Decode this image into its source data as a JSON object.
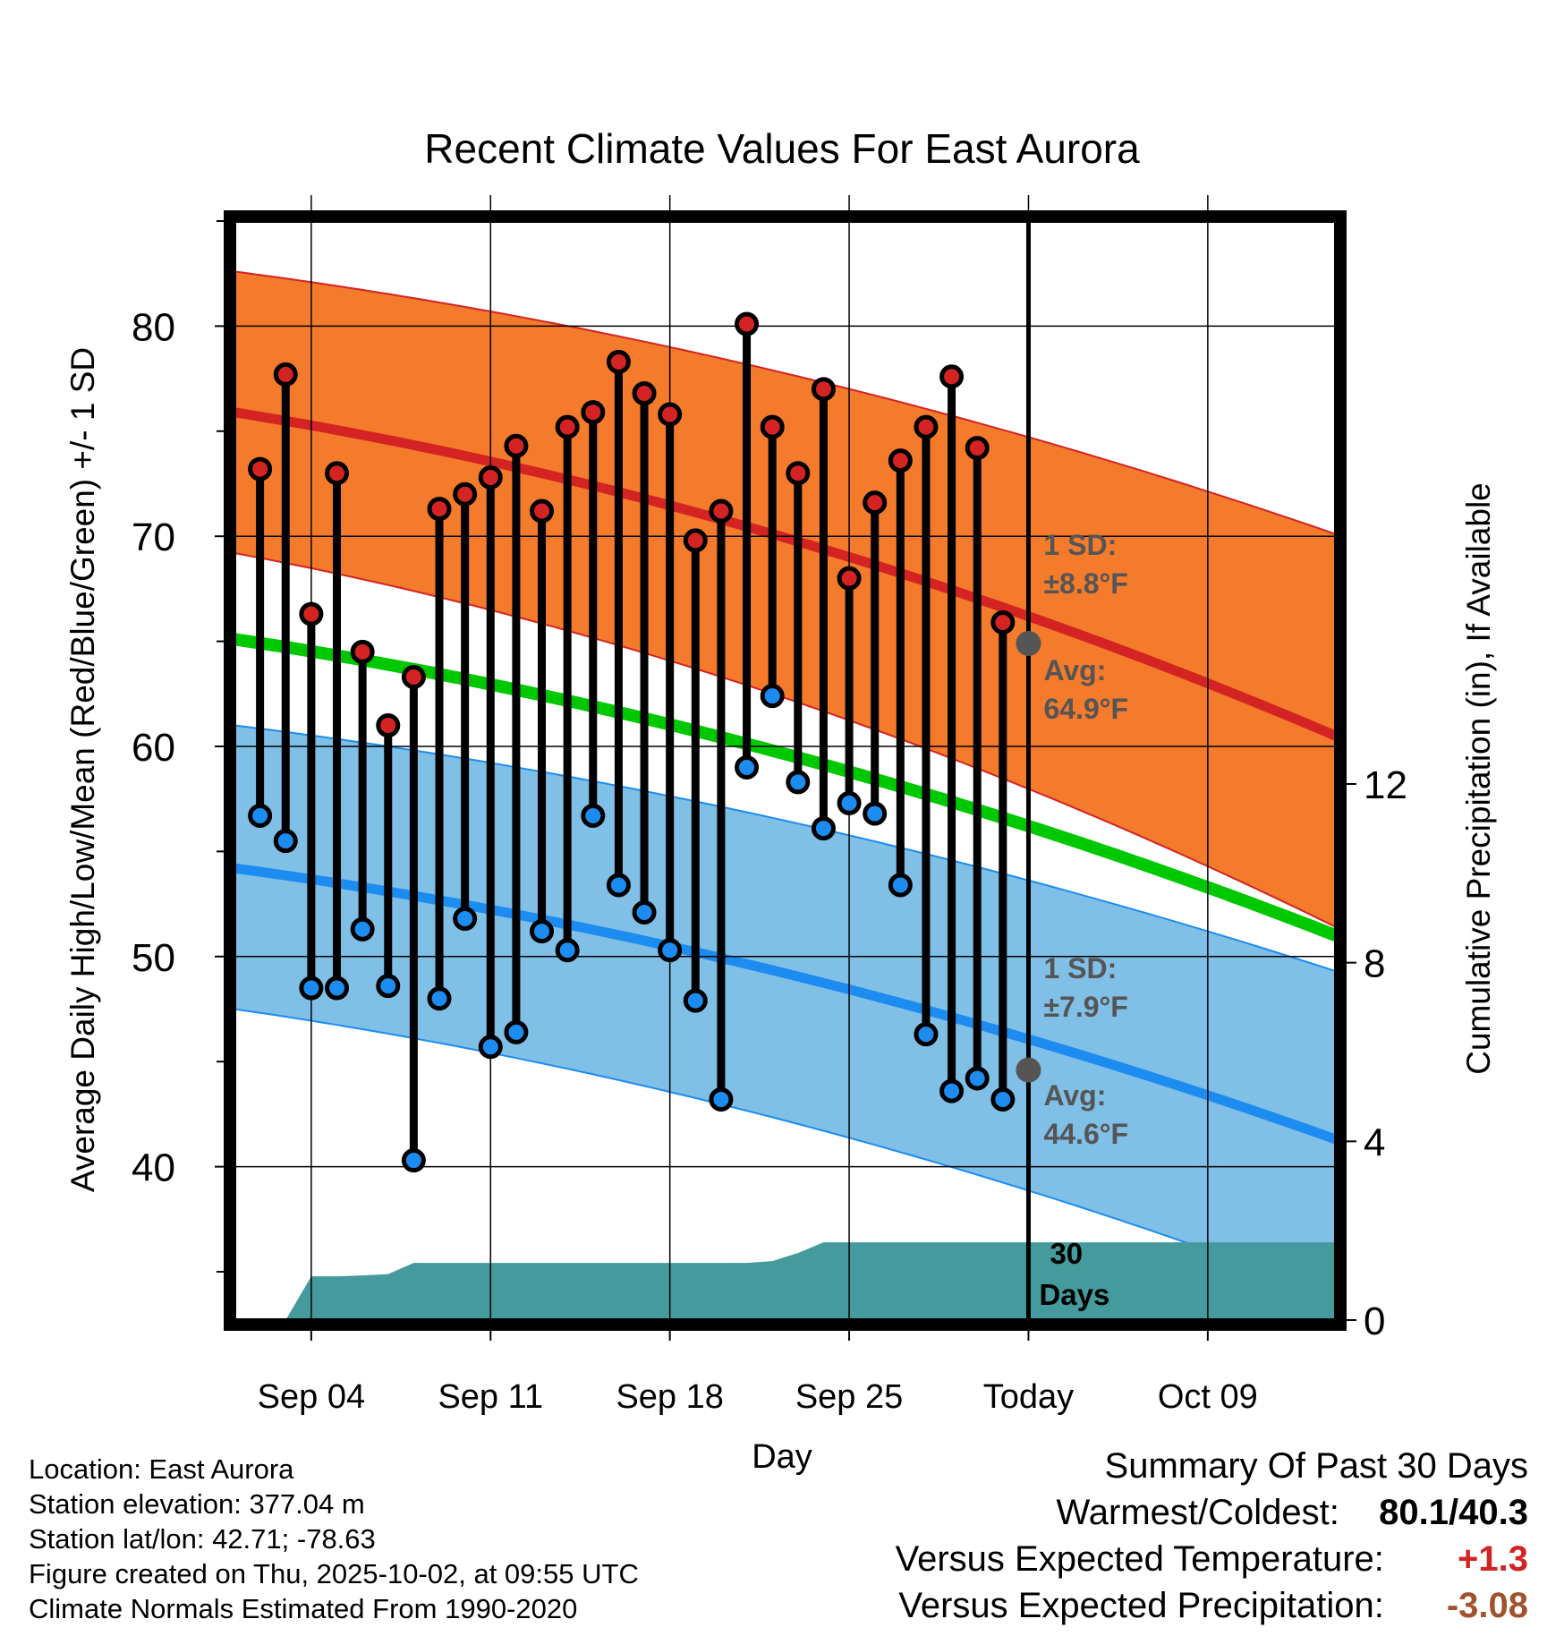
{
  "chart_data": {
    "type": "line",
    "title": "Recent Climate Values For East Aurora",
    "xlabel": "Day",
    "ylabel": "Average Daily High/Low/Mean (Red/Blue/Green) +/- 1 SD",
    "y2label": "Cumulative Precipitation (in), If Available",
    "ylim": [
      32.7,
      85
    ],
    "y2lim": [
      0,
      24.6
    ],
    "x_range_days": [
      1,
      44
    ],
    "yticks": [
      "40",
      "50",
      "60",
      "70",
      "80"
    ],
    "y2ticks": [
      "0",
      "4",
      "8",
      "12"
    ],
    "xticks": [
      {
        "day": 4,
        "label": "Sep 04"
      },
      {
        "day": 11,
        "label": "Sep 11"
      },
      {
        "day": 18,
        "label": "Sep 18"
      },
      {
        "day": 25,
        "label": "Sep 25"
      },
      {
        "day": 32,
        "label": "Today"
      },
      {
        "day": 39,
        "label": "Oct 09"
      }
    ],
    "today_day": 32,
    "days": [
      2,
      3,
      4,
      5,
      6,
      7,
      8,
      9,
      10,
      11,
      12,
      13,
      14,
      15,
      16,
      17,
      18,
      19,
      20,
      21,
      22,
      23,
      24,
      25,
      26,
      27,
      28,
      29,
      30,
      31
    ],
    "series": [
      {
        "name": "Daily High",
        "values": [
          73.2,
          77.7,
          66.3,
          73.0,
          64.5,
          61.0,
          63.3,
          71.3,
          72.0,
          72.8,
          74.3,
          71.2,
          75.2,
          75.9,
          78.3,
          76.8,
          75.8,
          69.8,
          71.2,
          80.1,
          75.2,
          73.0,
          77.0,
          68.0,
          71.6,
          73.6,
          75.2,
          77.6,
          74.2,
          65.9
        ]
      },
      {
        "name": "Daily Low",
        "values": [
          56.7,
          55.5,
          48.5,
          48.5,
          51.3,
          48.6,
          40.3,
          48.0,
          51.8,
          45.7,
          46.4,
          51.2,
          50.3,
          56.7,
          53.4,
          52.1,
          50.3,
          47.9,
          43.2,
          59.0,
          62.4,
          58.3,
          56.1,
          57.3,
          56.8,
          53.4,
          46.3,
          43.6,
          44.2,
          43.2
        ]
      },
      {
        "name": "Normal High",
        "start": 75.9,
        "end": 60.5
      },
      {
        "name": "Normal High +1 SD",
        "start": 82.6,
        "end": 70.1
      },
      {
        "name": "Normal High -1 SD",
        "start": 69.2,
        "end": 51.4
      },
      {
        "name": "Normal Mean",
        "start": 65.1,
        "end": 51.0
      },
      {
        "name": "Normal Low",
        "start": 54.2,
        "end": 41.3
      },
      {
        "name": "Normal Low +1 SD",
        "start": 61.0,
        "end": 49.3
      },
      {
        "name": "Normal Low -1 SD",
        "start": 47.5,
        "end": 33.8
      },
      {
        "name": "Cumulative Precipitation",
        "days": [
          1,
          3,
          4,
          5,
          6,
          7,
          8,
          20,
          21,
          22,
          23,
          24,
          25,
          44
        ],
        "values": [
          0,
          0,
          0.98,
          0.98,
          1.0,
          1.03,
          1.28,
          1.28,
          1.28,
          1.32,
          1.5,
          1.74,
          1.74,
          1.74
        ]
      }
    ],
    "annotations": {
      "high_sd_label": "1 SD:",
      "high_sd_value": "±8.8°F",
      "high_avg_label": "Avg:",
      "high_avg_value": "64.9°F",
      "high_avg_marker": 64.9,
      "low_sd_label": "1 SD:",
      "low_sd_value": "±7.9°F",
      "low_avg_label": "Avg:",
      "low_avg_value": "44.6°F",
      "low_avg_marker": 44.6,
      "period_value": "30",
      "period_unit": "Days"
    },
    "colors": {
      "high_band": "#f47a2c",
      "high_line": "#d42323",
      "high_edge": "#d42323",
      "low_band": "#80bfe6",
      "low_line": "#1c8cf0",
      "low_edge": "#1c8cf0",
      "mean_line": "#00c800",
      "precip_fill": "#449a9c",
      "high_marker": "#d42323",
      "low_marker": "#1c8cf0",
      "annotation_text": "#555555"
    }
  },
  "footer": {
    "location": "Location: East Aurora",
    "elevation": "Station elevation: 377.04 m",
    "latlon": "Station lat/lon: 42.71; -78.63",
    "created": "Figure created on Thu, 2025-10-02, at 09:55 UTC",
    "normals": "Climate Normals Estimated From 1990-2020"
  },
  "summary": {
    "title": "Summary Of Past 30 Days",
    "warmest_coldest_label": "Warmest/Coldest:",
    "warmest_coldest_value": "80.1/40.3",
    "temp_label": "Versus Expected Temperature:",
    "temp_value": "+1.3",
    "temp_color": "#d42323",
    "precip_label": "Versus Expected Precipitation:",
    "precip_value": "-3.08",
    "precip_color": "#a0522d"
  }
}
